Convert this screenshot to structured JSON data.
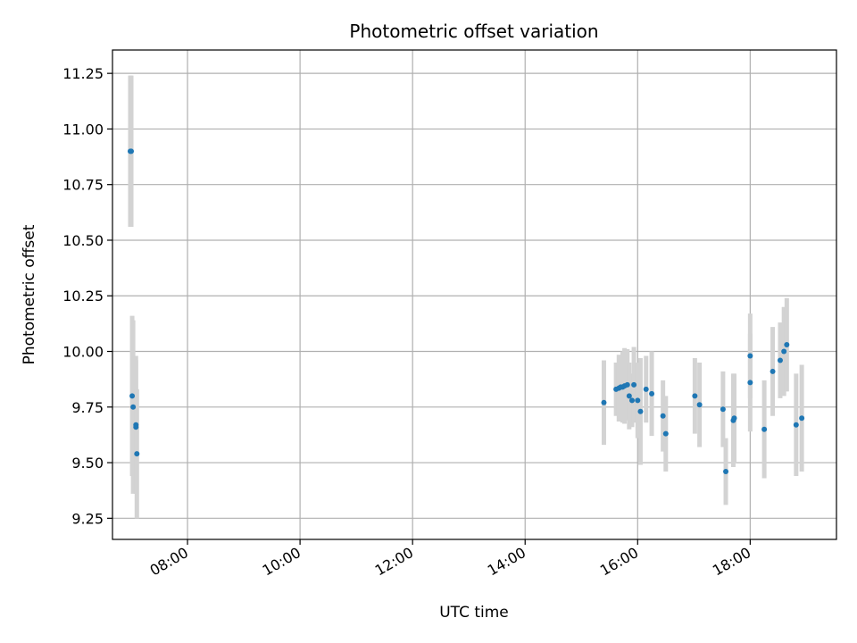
{
  "chart_data": {
    "type": "scatter",
    "title": "Photometric offset variation",
    "xlabel": "UTC time",
    "ylabel": "Photometric offset",
    "xlim": [
      "06:40",
      "19:32"
    ],
    "ylim": [
      9.155,
      11.355
    ],
    "x_ticks": [
      "08:00",
      "10:00",
      "12:00",
      "14:00",
      "16:00",
      "18:00"
    ],
    "y_ticks": [
      "9.25",
      "9.50",
      "9.75",
      "10.00",
      "10.25",
      "10.50",
      "10.75",
      "11.00",
      "11.25"
    ],
    "grid": true,
    "colors": {
      "marker": "#1f77b4",
      "errorbar": "#d3d3d3",
      "grid": "#b0b0b0"
    },
    "points": [
      {
        "x": "06:59",
        "y": 10.9,
        "err": 0.34
      },
      {
        "x": "07:00",
        "y": 10.9,
        "err": 0.34
      },
      {
        "x": "07:01",
        "y": 9.8,
        "err": 0.36
      },
      {
        "x": "07:02",
        "y": 9.75,
        "err": 0.39
      },
      {
        "x": "07:05",
        "y": 9.66,
        "err": 0.3
      },
      {
        "x": "07:05",
        "y": 9.67,
        "err": 0.31
      },
      {
        "x": "07:06",
        "y": 9.54,
        "err": 0.29
      },
      {
        "x": "15:24",
        "y": 9.77,
        "err": 0.19
      },
      {
        "x": "15:37",
        "y": 9.83,
        "err": 0.12
      },
      {
        "x": "15:40",
        "y": 9.835,
        "err": 0.15
      },
      {
        "x": "15:42",
        "y": 9.84,
        "err": 0.14
      },
      {
        "x": "15:44",
        "y": 9.84,
        "err": 0.16
      },
      {
        "x": "15:46",
        "y": 9.845,
        "err": 0.17
      },
      {
        "x": "15:49",
        "y": 9.85,
        "err": 0.16
      },
      {
        "x": "15:51",
        "y": 9.8,
        "err": 0.15
      },
      {
        "x": "15:54",
        "y": 9.78,
        "err": 0.12
      },
      {
        "x": "15:56",
        "y": 9.85,
        "err": 0.17
      },
      {
        "x": "16:00",
        "y": 9.78,
        "err": 0.17
      },
      {
        "x": "16:03",
        "y": 9.73,
        "err": 0.24
      },
      {
        "x": "16:09",
        "y": 9.83,
        "err": 0.15
      },
      {
        "x": "16:15",
        "y": 9.81,
        "err": 0.19
      },
      {
        "x": "16:27",
        "y": 9.71,
        "err": 0.16
      },
      {
        "x": "16:30",
        "y": 9.63,
        "err": 0.17
      },
      {
        "x": "17:01",
        "y": 9.8,
        "err": 0.17
      },
      {
        "x": "17:06",
        "y": 9.76,
        "err": 0.19
      },
      {
        "x": "17:31",
        "y": 9.74,
        "err": 0.17
      },
      {
        "x": "17:34",
        "y": 9.46,
        "err": 0.15
      },
      {
        "x": "17:42",
        "y": 9.69,
        "err": 0.21
      },
      {
        "x": "17:43",
        "y": 9.7,
        "err": 0.2
      },
      {
        "x": "18:00",
        "y": 9.86,
        "err": 0.22
      },
      {
        "x": "18:00",
        "y": 9.98,
        "err": 0.19
      },
      {
        "x": "18:15",
        "y": 9.65,
        "err": 0.22
      },
      {
        "x": "18:24",
        "y": 9.91,
        "err": 0.2
      },
      {
        "x": "18:32",
        "y": 9.96,
        "err": 0.17
      },
      {
        "x": "18:36",
        "y": 10.0,
        "err": 0.2
      },
      {
        "x": "18:39",
        "y": 10.03,
        "err": 0.21
      },
      {
        "x": "18:49",
        "y": 9.67,
        "err": 0.23
      },
      {
        "x": "18:55",
        "y": 9.7,
        "err": 0.24
      }
    ]
  }
}
